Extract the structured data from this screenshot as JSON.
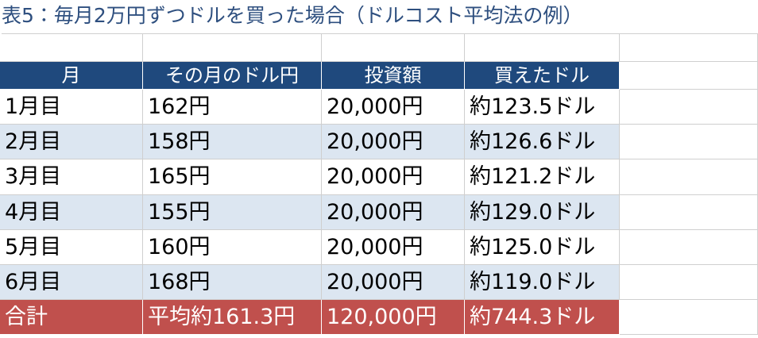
{
  "title": "表5：毎月2万円ずつドルを買った場合（ドルコスト平均法の例）",
  "table": {
    "header": [
      "月",
      "その月のドル円",
      "投資額",
      "買えたドル"
    ],
    "rows": [
      [
        "1月目",
        "162円",
        "20,000円",
        "約123.5ドル"
      ],
      [
        "2月目",
        "158円",
        "20,000円",
        "約126.6ドル"
      ],
      [
        "3月目",
        "165円",
        "20,000円",
        "約121.2ドル"
      ],
      [
        "4月目",
        "155円",
        "20,000円",
        "約129.0ドル"
      ],
      [
        "5月目",
        "160円",
        "20,000円",
        "約125.0ドル"
      ],
      [
        "6月目",
        "168円",
        "20,000円",
        "約119.0ドル"
      ]
    ],
    "total": [
      "合計",
      "平均約161.3円",
      "120,000円",
      "約744.3ドル"
    ]
  }
}
